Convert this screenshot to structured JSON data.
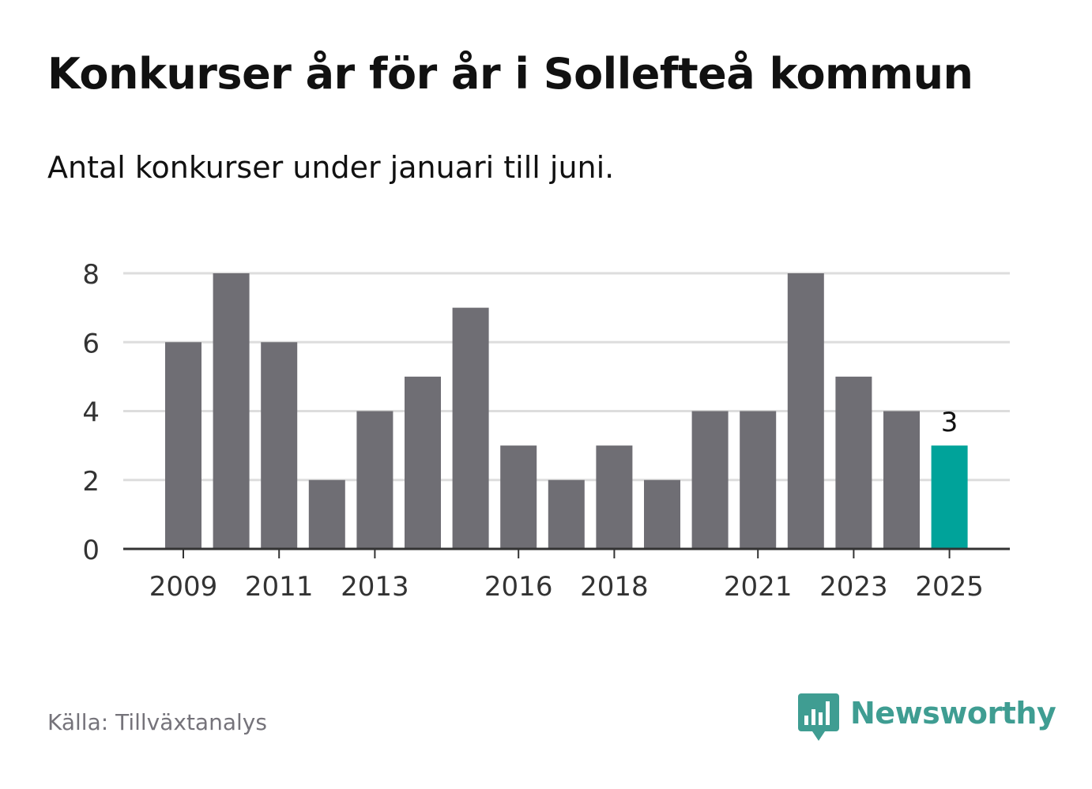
{
  "title": "Konkurser år för år i Sollefteå kommun",
  "subtitle": "Antal konkurser under januari till juni.",
  "source": "Källa: Tillväxtanalys",
  "logo": {
    "text": "Newsworthy",
    "icon": "chart-speech-bubble-icon",
    "color": "#3f9d92"
  },
  "colors": {
    "bar": "#6f6e74",
    "highlight": "#00a39a",
    "grid": "#dddddd",
    "axis": "#333333",
    "text": "#333333"
  },
  "chart_data": {
    "type": "bar",
    "title": "Konkurser år för år i Sollefteå kommun",
    "subtitle": "Antal konkurser under januari till juni.",
    "xlabel": "",
    "ylabel": "",
    "categories": [
      "2009",
      "2010",
      "2011",
      "2012",
      "2013",
      "2014",
      "2015",
      "2016",
      "2017",
      "2018",
      "2019",
      "2020",
      "2021",
      "2022",
      "2023",
      "2024",
      "2025"
    ],
    "values": [
      6,
      8,
      6,
      2,
      4,
      5,
      7,
      3,
      2,
      3,
      2,
      4,
      4,
      8,
      5,
      4,
      3
    ],
    "x_tick_labels": [
      "2009",
      "2011",
      "2013",
      "2016",
      "2018",
      "2021",
      "2023",
      "2025"
    ],
    "y_ticks": [
      0,
      2,
      4,
      6,
      8
    ],
    "ylim": [
      0,
      8
    ],
    "grid": true,
    "highlight_category": "2025",
    "highlight_label": "3"
  }
}
